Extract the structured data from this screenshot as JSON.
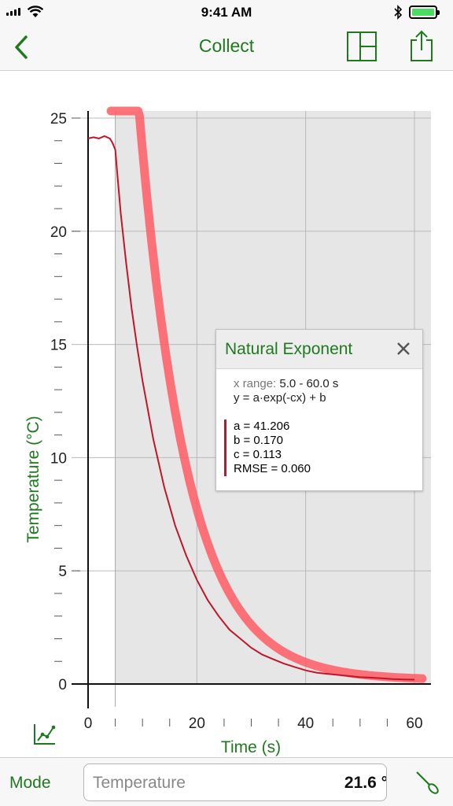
{
  "status_bar": {
    "time": "9:41 AM"
  },
  "nav": {
    "title": "Collect"
  },
  "graph": {
    "y_ticks": [
      "25",
      "20",
      "15",
      "10",
      "5",
      "0"
    ],
    "x_ticks": [
      "0",
      "20",
      "40",
      "60"
    ],
    "y_axis_label": "Temperature (°C)",
    "x_axis_label": "Time (s)"
  },
  "chart_data": {
    "type": "line",
    "xlabel": "Time (s)",
    "ylabel": "Temperature (°C)",
    "xlim": [
      0,
      60
    ],
    "ylim": [
      0,
      25
    ],
    "selection_range": [
      5,
      60
    ],
    "grid": true,
    "series": [
      {
        "x": [
          0,
          1,
          2,
          3,
          4,
          4.5,
          5,
          5.5,
          6,
          7,
          8,
          9,
          10,
          12,
          14,
          16,
          18,
          20,
          22,
          24,
          26,
          28,
          30,
          32,
          34,
          36,
          38,
          40,
          42,
          44,
          46,
          48,
          50,
          52,
          54,
          56,
          58,
          60
        ],
        "y": [
          24.1,
          24.15,
          24.1,
          24.2,
          24.1,
          23.9,
          23.6,
          22.2,
          20.8,
          18.6,
          16.6,
          14.9,
          13.4,
          10.8,
          8.7,
          7.0,
          5.7,
          4.6,
          3.7,
          3.0,
          2.4,
          2.0,
          1.6,
          1.3,
          1.1,
          0.9,
          0.75,
          0.6,
          0.5,
          0.45,
          0.4,
          0.35,
          0.3,
          0.28,
          0.25,
          0.22,
          0.2,
          0.19
        ]
      }
    ]
  },
  "fit_panel": {
    "title": "Natural Exponent",
    "x_range_label": "x range:",
    "x_range_value": "5.0 - 60.0 s",
    "equation": "y = a·exp(-cx) + b",
    "param_a": "a = 41.206",
    "param_b": "b = 0.170",
    "param_c": "c = 0.113",
    "rmse": "RMSE = 0.060",
    "fit_a": 41.206,
    "fit_b": 0.17,
    "fit_c": 0.113
  },
  "bottom": {
    "mode_label": "Mode",
    "meter_label": "Temperature",
    "meter_value": "21.6 °"
  },
  "colors": {
    "accent": "#1f7a1f",
    "data": "#c0162a",
    "fit": "#ff5a64",
    "selection": "#e6e6e6"
  },
  "icons": [
    "back-chevron-icon",
    "layout-icon",
    "share-icon",
    "close-icon",
    "graph-options-icon",
    "probe-icon"
  ]
}
